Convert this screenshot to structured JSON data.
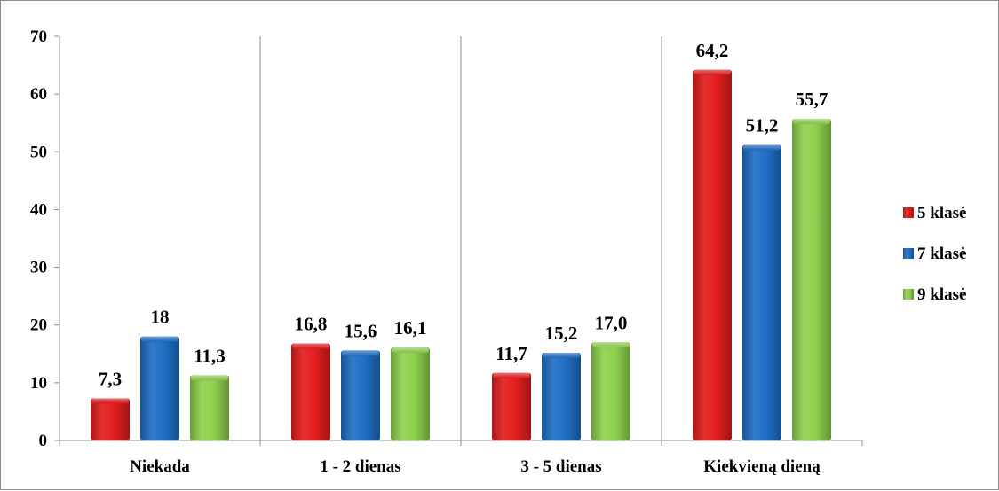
{
  "chart_data": {
    "type": "bar",
    "categories": [
      "Niekada",
      "1 - 2 dienas",
      "3 - 5 dienas",
      "Kiekvieną dieną"
    ],
    "series": [
      {
        "name": "5 klasė",
        "values": [
          7.3,
          16.8,
          11.7,
          64.2
        ],
        "labels": [
          "7,3",
          "16,8",
          "11,7",
          "64,2"
        ],
        "color": "#e41e1e"
      },
      {
        "name": "7 klasė",
        "values": [
          18,
          15.6,
          15.2,
          51.2
        ],
        "labels": [
          "18",
          "15,6",
          "15,2",
          "51,2"
        ],
        "color": "#1f6fc4"
      },
      {
        "name": "9 klasė",
        "values": [
          11.3,
          16.1,
          17.0,
          55.7
        ],
        "labels": [
          "11,3",
          "16,1",
          "17,0",
          "55,7"
        ],
        "color": "#8fd14f"
      }
    ],
    "yticks": [
      0,
      10,
      20,
      30,
      40,
      50,
      60,
      70
    ],
    "ylim": [
      0,
      70
    ],
    "xlabel": "",
    "ylabel": "",
    "title": "",
    "legend_position": "right",
    "grid": false,
    "category_separators": true
  }
}
